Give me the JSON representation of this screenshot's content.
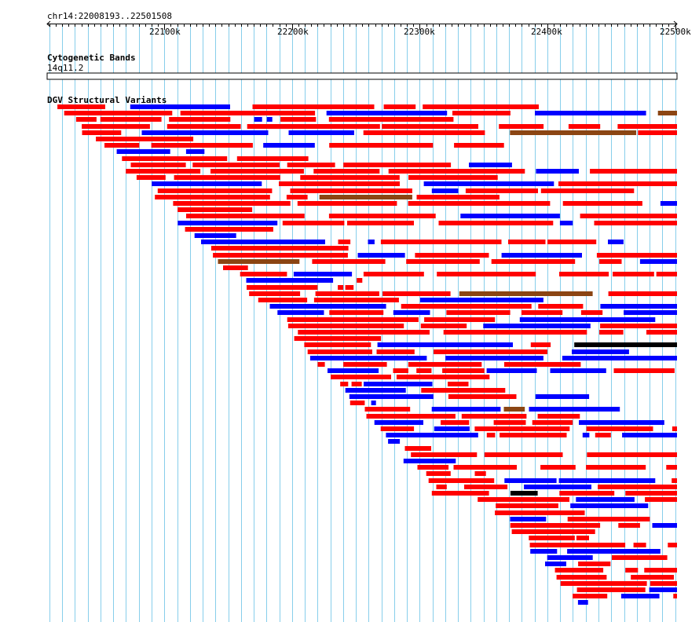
{
  "locus": "chr14:22008193..22501508",
  "region": {
    "start": 22008193,
    "end": 22501508
  },
  "scale": {
    "ticks": [
      {
        "pos": 22100000,
        "label": "22100k"
      },
      {
        "pos": 22200000,
        "label": "22200k"
      },
      {
        "pos": 22300000,
        "label": "22300k"
      },
      {
        "pos": 22400000,
        "label": "22400k"
      },
      {
        "pos": 22500000,
        "label": "22500k"
      }
    ]
  },
  "tracks": {
    "cytoband": {
      "title": "Cytogenetic Bands",
      "band_label": "14q11.2"
    },
    "dgv": {
      "title": "DGV Structural Variants"
    }
  },
  "colors": {
    "gain": "#ff0000",
    "loss": "#0000ff",
    "inversion": "#8b4513",
    "complex": "#000000",
    "other": "#4b0082",
    "gridline": "#87ceeb"
  }
}
